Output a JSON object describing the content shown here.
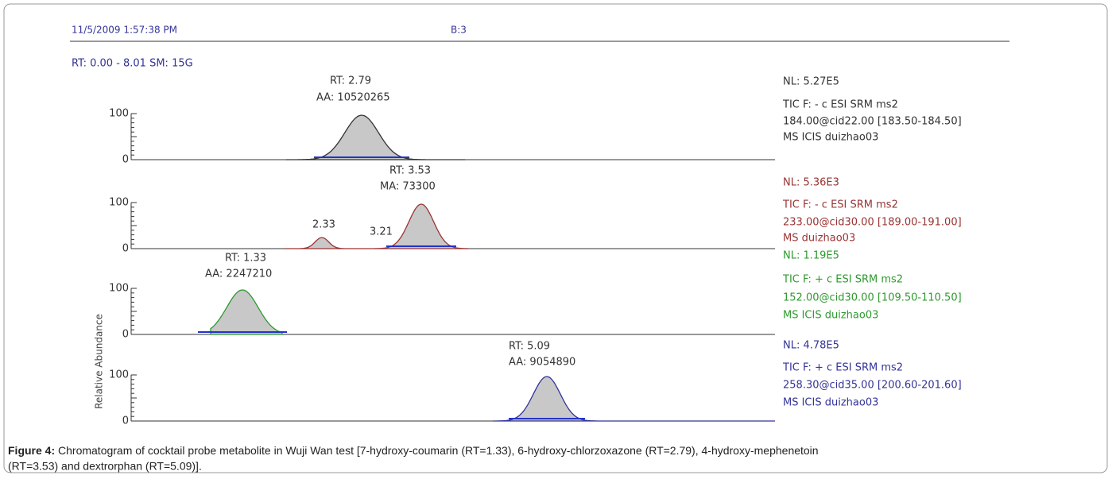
{
  "header": {
    "timestamp": "11/5/2009 1:57:38 PM",
    "sample": "B:3"
  },
  "range_label": "RT: 0.00 - 8.01   SM: 15G",
  "y_axis_label": "Relative Abundance",
  "panels": [
    {
      "color": "#333333",
      "ticks": [
        "100",
        "0"
      ],
      "peak_labels": [
        "RT: 2.79",
        "AA: 10520265"
      ],
      "info": [
        "NL: 5.27E5",
        "TIC F: - c ESI SRM ms2",
        "184.00@cid22.00 [183.50-184.50]",
        "MS  ICIS duizhao03"
      ]
    },
    {
      "color": "#993333",
      "ticks": [
        "100",
        "0"
      ],
      "peak_labels": [
        "RT: 3.53",
        "MA: 73300",
        "2.33",
        "3.21"
      ],
      "info": [
        "NL: 5.36E3",
        "TIC F: - c ESI SRM ms2",
        "233.00@cid30.00 [189.00-191.00]",
        "MS duizhao03"
      ]
    },
    {
      "color": "#2e9a2e",
      "ticks": [
        "100",
        "0"
      ],
      "peak_labels": [
        "RT: 1.33",
        "AA: 2247210"
      ],
      "info": [
        "NL: 1.19E5",
        "TIC F: + c ESI SRM ms2",
        "152.00@cid30.00 [109.50-110.50]",
        "MS  ICIS duizhao03"
      ]
    },
    {
      "color": "#333399",
      "ticks": [
        "100",
        "0"
      ],
      "peak_labels": [
        "RT: 5.09",
        "AA: 9054890"
      ],
      "info": [
        "NL: 4.78E5",
        "TIC F: + c ESI SRM ms2",
        "258.30@cid35.00 [200.60-201.60]",
        "MS  ICIS duizhao03"
      ]
    }
  ],
  "caption": {
    "label": "Figure 4:",
    "line1": "Chromatogram of cocktail probe metabolite in Wuji Wan test [7-hydroxy-coumarin (RT=1.33), 6-hydroxy-chlorzoxazone (RT=2.79), 4-hydroxy-mephenetoin",
    "line2": "(RT=3.53) and dextrorphan (RT=5.09)]."
  }
}
